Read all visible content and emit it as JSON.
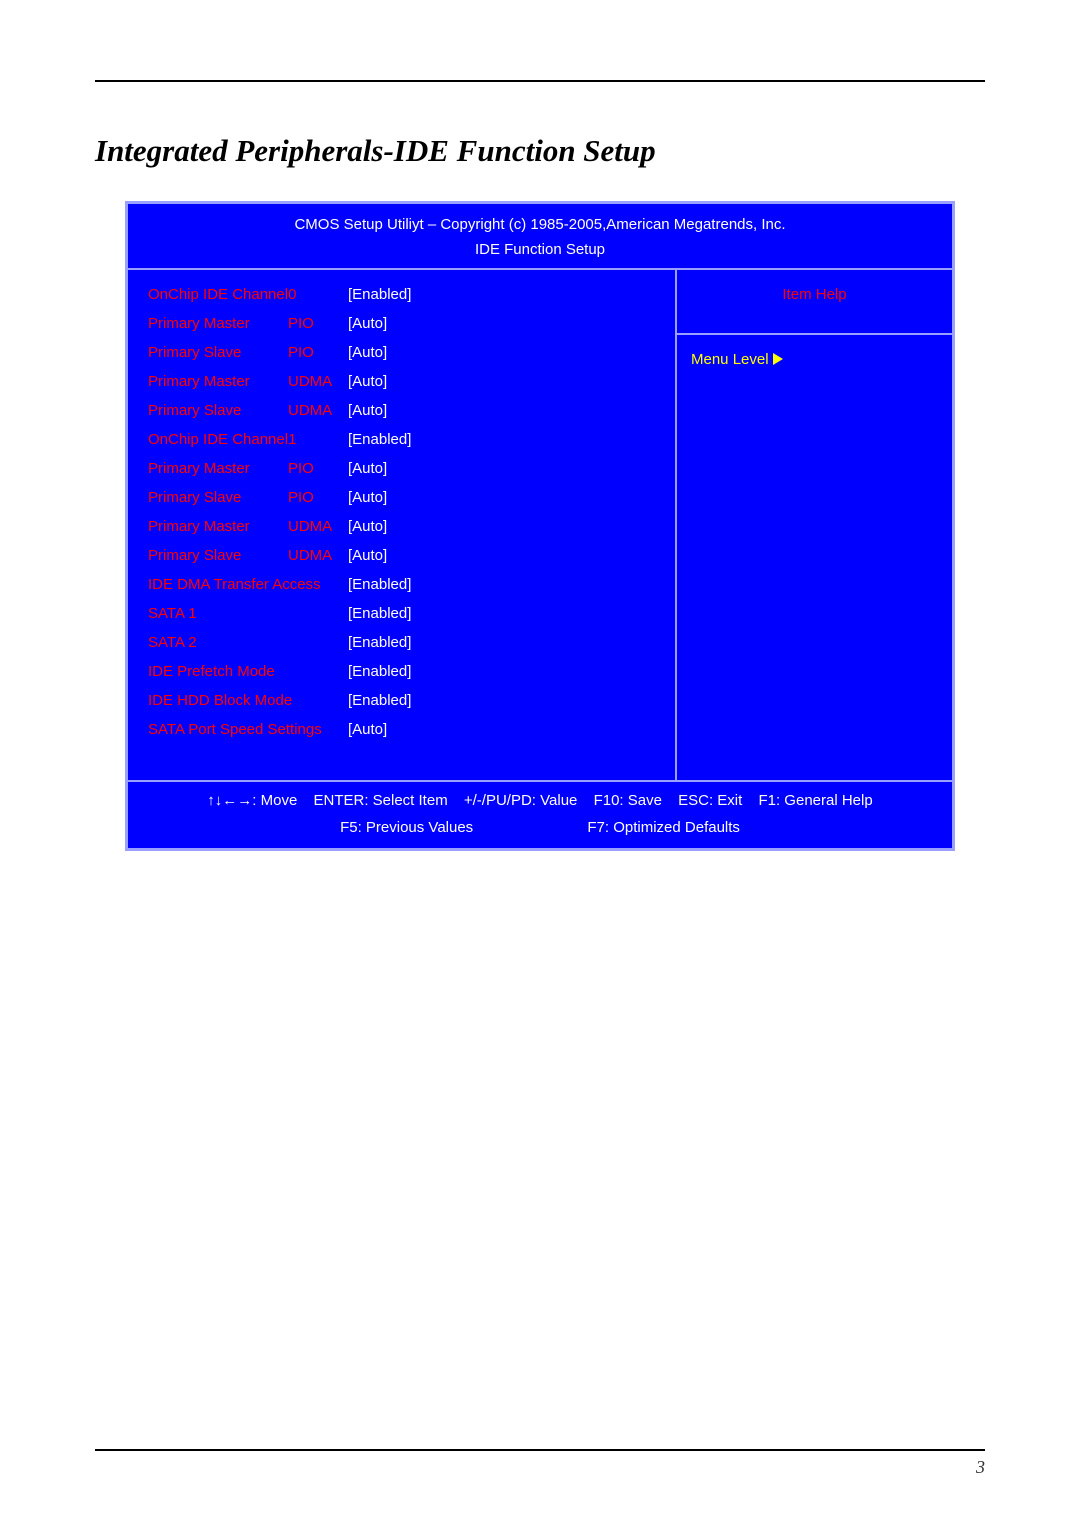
{
  "title": "Integrated Peripherals-IDE Function Setup",
  "bios": {
    "header_line1": "CMOS Setup Utiliyt – Copyright (c) 1985-2005,American Megatrends, Inc.",
    "header_line2": "IDE Function Setup",
    "item_help": "Item Help",
    "menu_level": "Menu Level",
    "rows": [
      {
        "name": "OnChip IDE Channel0",
        "mode": "",
        "value": "[Enabled]",
        "wide": true
      },
      {
        "name": "Primary Master",
        "mode": "PIO",
        "value": "[Auto]",
        "wide": false
      },
      {
        "name": "Primary Slave",
        "mode": "PIO",
        "value": "[Auto]",
        "wide": false
      },
      {
        "name": "Primary Master",
        "mode": "UDMA",
        "value": "[Auto]",
        "wide": false
      },
      {
        "name": "Primary Slave",
        "mode": "UDMA",
        "value": "[Auto]",
        "wide": false
      },
      {
        "name": "OnChip IDE Channel1",
        "mode": "",
        "value": "[Enabled]",
        "wide": true
      },
      {
        "name": "Primary Master",
        "mode": "PIO",
        "value": "[Auto]",
        "wide": false
      },
      {
        "name": "Primary Slave",
        "mode": "PIO",
        "value": "[Auto]",
        "wide": false
      },
      {
        "name": "Primary Master",
        "mode": "UDMA",
        "value": "[Auto]",
        "wide": false
      },
      {
        "name": "Primary Slave",
        "mode": "UDMA",
        "value": "[Auto]",
        "wide": false
      },
      {
        "name": "IDE DMA Transfer Access",
        "mode": "",
        "value": "[Enabled]",
        "wide": true
      },
      {
        "name": "SATA 1",
        "mode": "",
        "value": "[Enabled]",
        "wide": true
      },
      {
        "name": "SATA 2",
        "mode": "",
        "value": "[Enabled]",
        "wide": true
      },
      {
        "name": "IDE Prefetch Mode",
        "mode": "",
        "value": "[Enabled]",
        "wide": true
      },
      {
        "name": "IDE HDD Block Mode",
        "mode": "",
        "value": "[Enabled]",
        "wide": true
      },
      {
        "name": "SATA Port Speed Settings",
        "mode": "",
        "value": "[Auto]",
        "wide": true
      }
    ],
    "footer": {
      "move": "↑↓←→: Move",
      "enter": "ENTER: Select Item",
      "pupd": "+/-/PU/PD: Value",
      "f10": "F10: Save",
      "esc": "ESC: Exit",
      "f1": "F1: General Help",
      "f5": "F5: Previous Values",
      "f7": "F7: Optimized Defaults"
    }
  },
  "page_number": "3",
  "colors": {
    "bios_bg": "#0000ff",
    "bios_border": "#9aa0ff",
    "label_red": "#ff0000",
    "value_white": "#ffffff",
    "menu_yellow": "#ffff00"
  }
}
